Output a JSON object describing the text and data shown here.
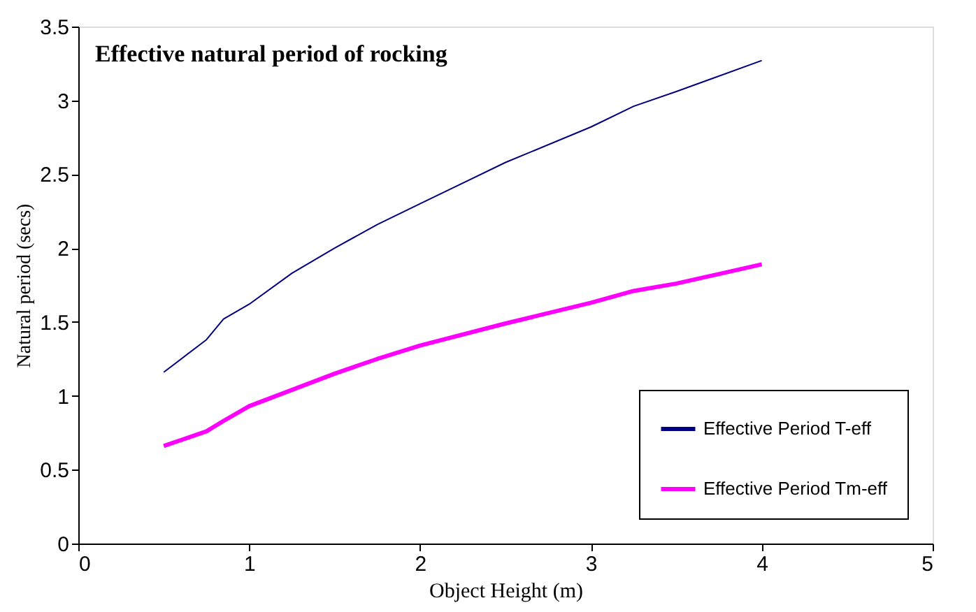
{
  "chart_data": {
    "type": "line",
    "title": "Effective natural  period of rocking",
    "xlabel": "Object Height (m)",
    "ylabel": "Natural period (secs)",
    "xlim": [
      0,
      5
    ],
    "xticks": [
      0,
      1,
      2,
      3,
      4,
      5
    ],
    "ylim": [
      0,
      3.5
    ],
    "yticks": [
      0,
      0.5,
      1,
      1.5,
      2,
      2.5,
      3,
      3.5
    ],
    "grid": false,
    "legend": "bottom right",
    "marker": "none",
    "line_style": "solid",
    "x": [
      0.5,
      0.75,
      0.85,
      1,
      1.25,
      1.5,
      1.75,
      2,
      2.5,
      3,
      3.25,
      3.5,
      4
    ],
    "series": [
      {
        "name": "Effective Period T-eff",
        "color": "#000080",
        "values": [
          1.16,
          1.38,
          1.52,
          1.62,
          1.83,
          2.0,
          2.16,
          2.3,
          2.58,
          2.82,
          2.96,
          3.06,
          3.27
        ]
      },
      {
        "name": "Effective Period Tm-eff",
        "color": "#ff00ff",
        "values": [
          0.66,
          0.76,
          0.83,
          0.93,
          1.04,
          1.15,
          1.25,
          1.34,
          1.49,
          1.63,
          1.71,
          1.76,
          1.89
        ]
      }
    ]
  }
}
